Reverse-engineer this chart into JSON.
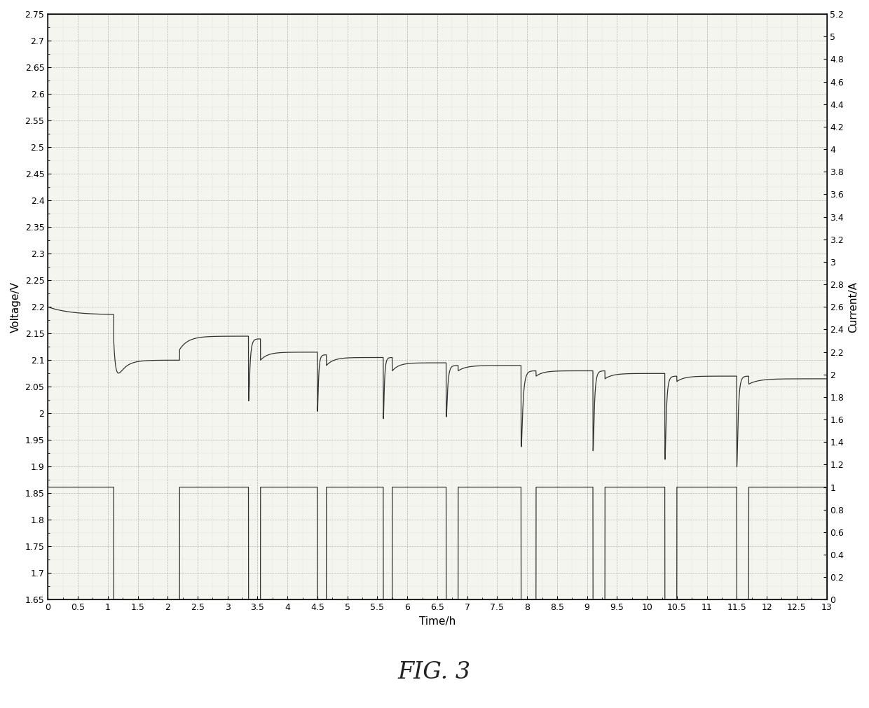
{
  "title": "FIG. 3",
  "xlabel": "Time/h",
  "ylabel_left": "Voltage/V",
  "ylabel_right": "Current/A",
  "xlim": [
    0,
    13
  ],
  "ylim_left": [
    1.65,
    2.75
  ],
  "ylim_right": [
    0,
    5.2
  ],
  "yticks_left": [
    1.65,
    1.7,
    1.75,
    1.8,
    1.85,
    1.9,
    1.95,
    2.0,
    2.05,
    2.1,
    2.15,
    2.2,
    2.25,
    2.3,
    2.35,
    2.4,
    2.45,
    2.5,
    2.55,
    2.6,
    2.65,
    2.7,
    2.75
  ],
  "yticks_right": [
    0,
    0.2,
    0.4,
    0.6,
    0.8,
    1.0,
    1.2,
    1.4,
    1.6,
    1.8,
    2.0,
    2.2,
    2.4,
    2.6,
    2.8,
    3.0,
    3.2,
    3.4,
    3.6,
    3.8,
    4.0,
    4.2,
    4.4,
    4.6,
    4.8,
    5.0,
    5.2
  ],
  "xticks": [
    0,
    0.5,
    1,
    1.5,
    2,
    2.5,
    3,
    3.5,
    4,
    4.5,
    5,
    5.5,
    6,
    6.5,
    7,
    7.5,
    8,
    8.5,
    9,
    9.5,
    10,
    10.5,
    11,
    11.5,
    12,
    12.5,
    13
  ],
  "line_color": "#333333",
  "grid_color": "#999999",
  "background_color": "#f5f5f0",
  "fig_background": "#ffffff",
  "cycles": [
    {
      "cs": 0.0,
      "ce": 1.1,
      "ds": 1.1,
      "de": 2.2,
      "charge_start_V": 2.2,
      "charge_plateau_V": 2.185,
      "dip_V": 2.05,
      "recover_V": 2.06,
      "cur": 1.0,
      "dip_depth": 0.05
    },
    {
      "cs": 2.2,
      "ce": 3.35,
      "ds": 3.35,
      "de": 3.55,
      "charge_start_V": 2.12,
      "charge_plateau_V": 2.145,
      "dip_V": 2.02,
      "recover_V": 2.03,
      "cur": 1.0,
      "dip_depth": 0.12
    },
    {
      "cs": 3.55,
      "ce": 4.5,
      "ds": 4.5,
      "de": 4.65,
      "charge_start_V": 2.1,
      "charge_plateau_V": 2.115,
      "dip_V": 2.0,
      "recover_V": 2.01,
      "cur": 1.0,
      "dip_depth": 0.11
    },
    {
      "cs": 4.65,
      "ce": 5.6,
      "ds": 5.6,
      "de": 5.75,
      "charge_start_V": 2.09,
      "charge_plateau_V": 2.105,
      "dip_V": 1.99,
      "recover_V": 2.0,
      "cur": 1.0,
      "dip_depth": 0.115
    },
    {
      "cs": 5.75,
      "ce": 6.65,
      "ds": 6.65,
      "de": 6.85,
      "charge_start_V": 2.08,
      "charge_plateau_V": 2.095,
      "dip_V": 1.99,
      "recover_V": 2.0,
      "cur": 1.0,
      "dip_depth": 0.1
    },
    {
      "cs": 6.85,
      "ce": 7.9,
      "ds": 7.9,
      "de": 8.15,
      "charge_start_V": 2.08,
      "charge_plateau_V": 2.09,
      "dip_V": 1.93,
      "recover_V": 1.95,
      "cur": 1.0,
      "dip_depth": 0.15
    },
    {
      "cs": 8.15,
      "ce": 9.1,
      "ds": 9.1,
      "de": 9.3,
      "charge_start_V": 2.07,
      "charge_plateau_V": 2.08,
      "dip_V": 1.93,
      "recover_V": 1.95,
      "cur": 1.0,
      "dip_depth": 0.15
    },
    {
      "cs": 9.3,
      "ce": 10.3,
      "ds": 10.3,
      "de": 10.5,
      "charge_start_V": 2.065,
      "charge_plateau_V": 2.075,
      "dip_V": 1.91,
      "recover_V": 1.93,
      "cur": 1.0,
      "dip_depth": 0.16
    },
    {
      "cs": 10.5,
      "ce": 11.5,
      "ds": 11.5,
      "de": 11.7,
      "charge_start_V": 2.06,
      "charge_plateau_V": 2.07,
      "dip_V": 1.9,
      "recover_V": 1.92,
      "cur": 1.0,
      "dip_depth": 0.17
    },
    {
      "cs": 11.7,
      "ce": 13.0,
      "ds": 13.0,
      "de": 13.0,
      "charge_start_V": 2.055,
      "charge_plateau_V": 2.065,
      "dip_V": 2.02,
      "recover_V": 2.03,
      "cur": 1.0,
      "dip_depth": 0.04
    }
  ]
}
